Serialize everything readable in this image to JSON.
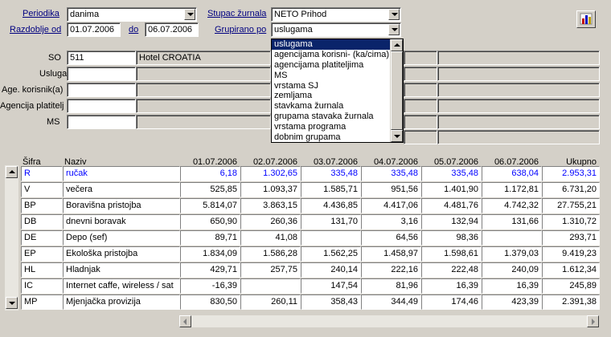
{
  "filters": {
    "periodika_label": "Periodika",
    "periodika_value": "danima",
    "razdoblje_label": "Razdoblje od",
    "date_from": "01.07.2006",
    "do_label": "do",
    "date_to": "06.07.2006",
    "stupac_label": "Stupac žurnala",
    "stupac_value": "NETO Prihod",
    "grupirano_label": "Grupirano po",
    "grupirano_value": "uslugama"
  },
  "grupirano_options": [
    "uslugama",
    "agencijama korisni- (ka/cima)",
    "agencijama platiteljima",
    "MS",
    "vrstama SJ",
    "zemljama",
    "stavkama žurnala",
    "grupama stavaka žurnala",
    "vrstama programa",
    "dobnim grupama"
  ],
  "criteria": {
    "so_label": "SO",
    "so_code": "511",
    "so_name": "Hotel CROATIA",
    "usluga_label": "Usluga",
    "korisnik_label": "Age. korisnik(a)",
    "platitelj_label": "Agencija platitelj",
    "ms_label": "MS"
  },
  "table": {
    "headers": [
      "Šifra",
      "Naziv",
      "01.07.2006",
      "02.07.2006",
      "03.07.2006",
      "04.07.2006",
      "05.07.2006",
      "06.07.2006",
      "Ukupno"
    ],
    "rows": [
      [
        "R",
        "ručak",
        "6,18",
        "1.302,65",
        "335,48",
        "335,48",
        "335,48",
        "638,04",
        "2.953,31"
      ],
      [
        "V",
        "večera",
        "525,85",
        "1.093,37",
        "1.585,71",
        "951,56",
        "1.401,90",
        "1.172,81",
        "6.731,20"
      ],
      [
        "BP",
        "Boravišna pristojba",
        "5.814,07",
        "3.863,15",
        "4.436,85",
        "4.417,06",
        "4.481,76",
        "4.742,32",
        "27.755,21"
      ],
      [
        "DB",
        "dnevni boravak",
        "650,90",
        "260,36",
        "131,70",
        "3,16",
        "132,94",
        "131,66",
        "1.310,72"
      ],
      [
        "DE",
        "Depo (sef)",
        "89,71",
        "41,08",
        "",
        "64,56",
        "98,36",
        "",
        "293,71"
      ],
      [
        "EP",
        "Ekološka pristojba",
        "1.834,09",
        "1.586,28",
        "1.562,25",
        "1.458,97",
        "1.598,61",
        "1.379,03",
        "9.419,23"
      ],
      [
        "HL",
        "Hladnjak",
        "429,71",
        "257,75",
        "240,14",
        "222,16",
        "222,48",
        "240,09",
        "1.612,34"
      ],
      [
        "IC",
        "Internet caffe, wireless / sat",
        "-16,39",
        "",
        "147,54",
        "81,96",
        "16,39",
        "16,39",
        "245,89"
      ],
      [
        "MP",
        "Mjenjačka provizija",
        "830,50",
        "260,11",
        "358,43",
        "344,49",
        "174,46",
        "423,39",
        "2.391,38"
      ]
    ]
  },
  "icons": {
    "chart": "bar-chart-icon"
  }
}
